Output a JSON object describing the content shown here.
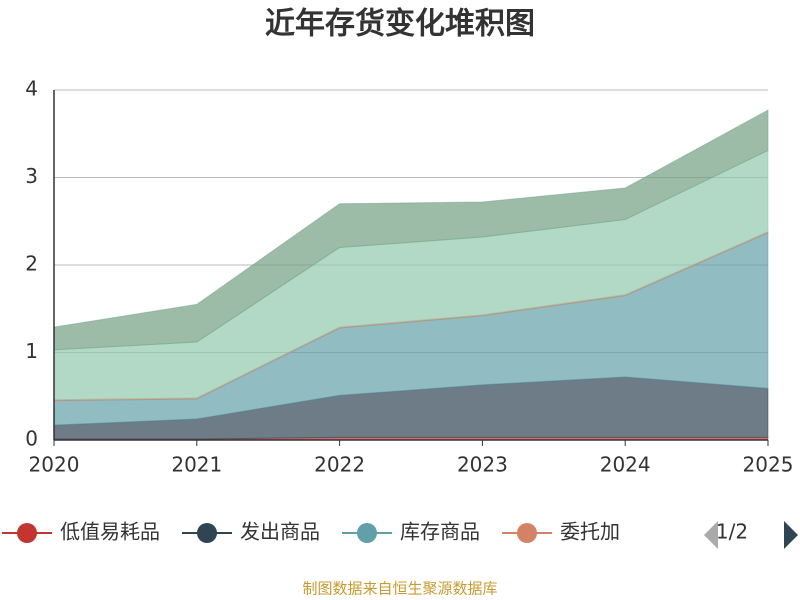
{
  "chart_data": {
    "type": "stacked_area",
    "title": "近年存货变化堆积图",
    "categories": [
      "2020",
      "2021",
      "2022",
      "2023",
      "2024",
      "2025"
    ],
    "series": [
      {
        "name": "低值易耗品",
        "color": "#c23531",
        "values": [
          0.01,
          0.01,
          0.03,
          0.03,
          0.03,
          0.03
        ]
      },
      {
        "name": "发出商品",
        "color": "#2f4554",
        "values": [
          0.16,
          0.23,
          0.48,
          0.6,
          0.69,
          0.56
        ]
      },
      {
        "name": "库存商品",
        "color": "#61a0a8",
        "values": [
          0.28,
          0.23,
          0.77,
          0.79,
          0.93,
          1.78
        ]
      },
      {
        "name": "委托加",
        "color": "#d48265",
        "values": [
          0.01,
          0.01,
          0.01,
          0.01,
          0.01,
          0.01
        ]
      },
      {
        "color": "#91c7ae",
        "values": [
          0.57,
          0.64,
          0.91,
          0.89,
          0.86,
          0.93
        ]
      },
      {
        "color": "#749f83",
        "values": [
          0.26,
          0.43,
          0.5,
          0.4,
          0.36,
          0.46
        ]
      }
    ],
    "ylim": [
      0,
      4
    ],
    "yticks": [
      0,
      1,
      2,
      3,
      4
    ],
    "grid": true,
    "legend_page": "1/2",
    "source": "制图数据来自恒生聚源数据库"
  }
}
